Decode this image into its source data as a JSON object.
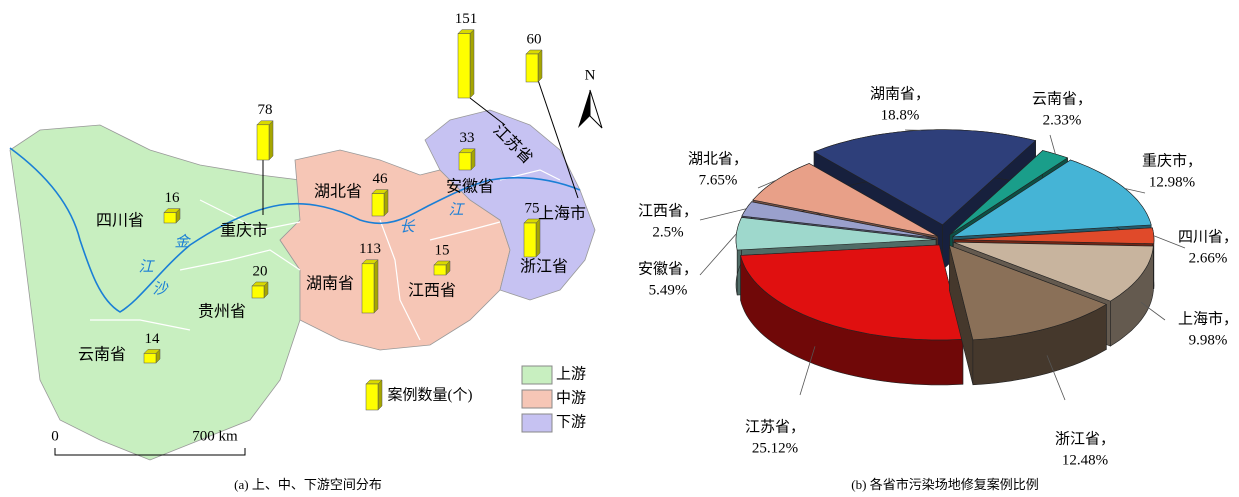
{
  "chart_data": [
    {
      "type": "map_bars",
      "categories": [
        "四川省",
        "重庆市",
        "贵州省",
        "云南省",
        "湖北省",
        "湖南省",
        "江西省",
        "安徽省",
        "江苏省",
        "上海市",
        "浙江省"
      ],
      "values": [
        16,
        78,
        20,
        14,
        46,
        113,
        15,
        33,
        151,
        60,
        75
      ],
      "bar_color": "#ffff00",
      "regions": [
        "上游",
        "中游",
        "下游"
      ],
      "region_colors": [
        "#c8efc0",
        "#f6c6b6",
        "#c6c2f2"
      ],
      "legend_title": "案例数量(个)",
      "river_chars": [
        "金",
        "沙",
        "江",
        "长",
        "江"
      ],
      "scale_labels": [
        "0",
        "700 km"
      ],
      "north": "N",
      "caption": "(a) 上、中、下游空间分布"
    },
    {
      "type": "pie",
      "categories": [
        "湖南省，",
        "云南省，",
        "重庆市，",
        "四川省，",
        "上海市，",
        "浙江省，",
        "江苏省，",
        "安徽省，",
        "江西省，",
        "湖北省，"
      ],
      "values": [
        18.8,
        2.33,
        12.98,
        2.66,
        9.98,
        12.48,
        25.12,
        5.49,
        2.5,
        7.65
      ],
      "value_labels": [
        "18.8%",
        "2.33%",
        "12.98%",
        "2.66%",
        "9.98%",
        "12.48%",
        "25.12%",
        "5.49%",
        "2.5%",
        "7.65%"
      ],
      "colors": [
        "#2e3f7a",
        "#1a9e8a",
        "#45b4d6",
        "#e04a2a",
        "#c8b49e",
        "#8a7058",
        "#e01010",
        "#9ed8cc",
        "#9aa0cc",
        "#e8a088"
      ],
      "caption": "(b) 各省市污染场地修复案例比例"
    }
  ]
}
